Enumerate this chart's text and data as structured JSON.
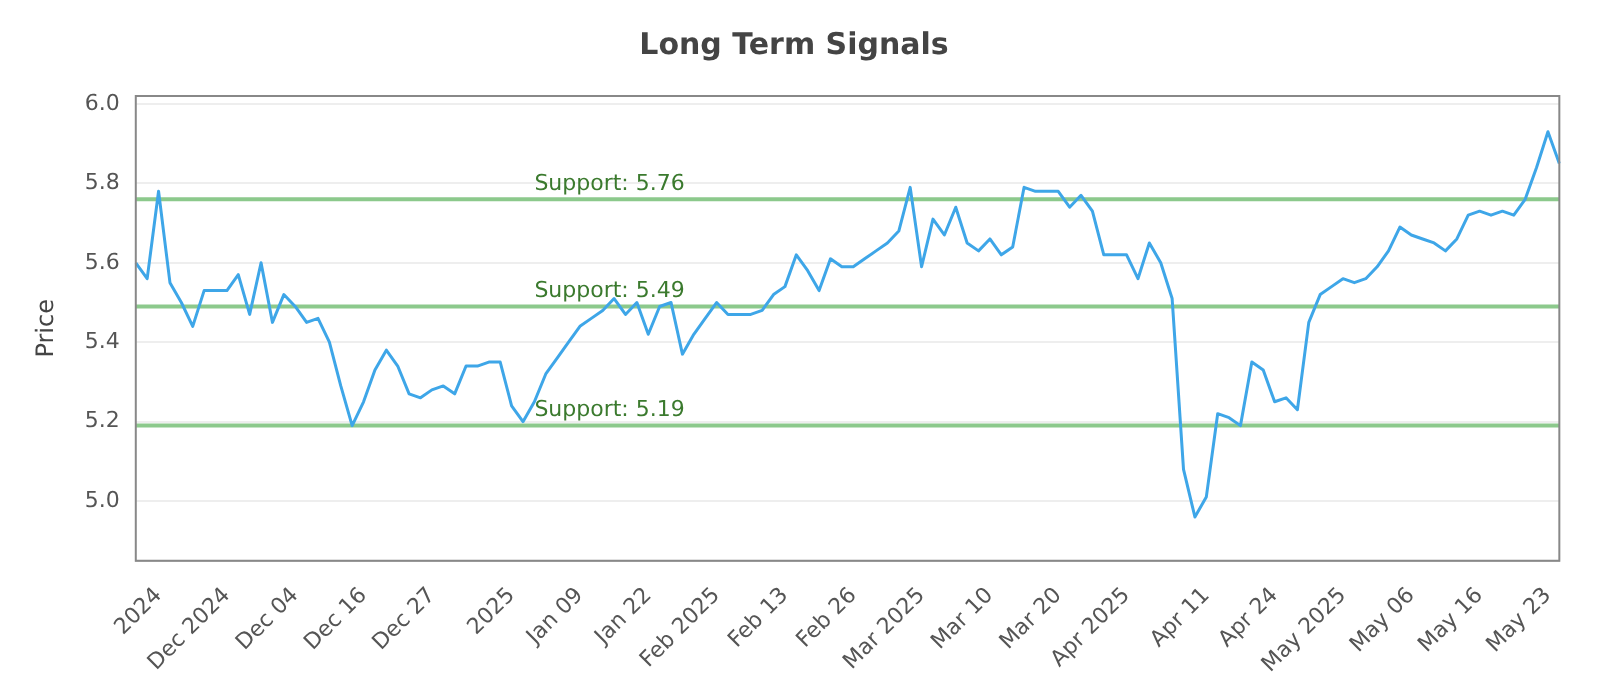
{
  "chart_data": {
    "type": "line",
    "title": "Long Term Signals",
    "ylabel": "Price",
    "categories": [
      null,
      null,
      "2024",
      null,
      null,
      null,
      null,
      null,
      "Dec 2024",
      null,
      null,
      null,
      null,
      null,
      "Dec 04",
      null,
      null,
      null,
      null,
      null,
      "Dec 16",
      null,
      null,
      null,
      null,
      null,
      "Dec 27",
      null,
      null,
      null,
      null,
      null,
      null,
      "2025",
      null,
      null,
      null,
      null,
      null,
      "Jan 09",
      null,
      null,
      null,
      null,
      null,
      "Jan 22",
      null,
      null,
      null,
      null,
      null,
      "Feb 2025",
      null,
      null,
      null,
      null,
      null,
      "Feb 13",
      null,
      null,
      null,
      null,
      null,
      "Feb 26",
      null,
      null,
      null,
      null,
      null,
      "Mar 2025",
      null,
      null,
      null,
      null,
      null,
      "Mar 10",
      null,
      null,
      null,
      null,
      null,
      "Mar 20",
      null,
      null,
      null,
      null,
      null,
      "Apr 2025",
      null,
      null,
      null,
      null,
      null,
      null,
      "Apr 11",
      null,
      null,
      null,
      null,
      null,
      "Apr 24",
      null,
      null,
      null,
      null,
      null,
      "May 2025",
      null,
      null,
      null,
      null,
      null,
      "May 06",
      null,
      null,
      null,
      null,
      null,
      "May 16",
      null,
      null,
      null,
      null,
      null,
      "May 23",
      null
    ],
    "series": [
      {
        "color": "#3ea6e8",
        "values": [
          5.6,
          5.56,
          5.78,
          5.55,
          5.5,
          5.44,
          5.53,
          5.53,
          5.53,
          5.57,
          5.47,
          5.6,
          5.45,
          5.52,
          5.49,
          5.45,
          5.46,
          5.4,
          5.29,
          5.19,
          5.25,
          5.33,
          5.38,
          5.34,
          5.27,
          5.26,
          5.28,
          5.29,
          5.27,
          5.34,
          5.34,
          5.35,
          5.35,
          5.24,
          5.2,
          5.25,
          5.32,
          5.36,
          5.4,
          5.44,
          5.46,
          5.48,
          5.51,
          5.47,
          5.5,
          5.42,
          5.49,
          5.5,
          5.37,
          5.42,
          5.46,
          5.5,
          5.47,
          5.47,
          5.47,
          5.48,
          5.52,
          5.54,
          5.62,
          5.58,
          5.53,
          5.61,
          5.59,
          5.59,
          5.61,
          5.63,
          5.65,
          5.68,
          5.79,
          5.59,
          5.71,
          5.67,
          5.74,
          5.65,
          5.63,
          5.66,
          5.62,
          5.64,
          5.79,
          5.78,
          5.78,
          5.78,
          5.74,
          5.77,
          5.73,
          5.62,
          5.62,
          5.62,
          5.56,
          5.65,
          5.6,
          5.51,
          5.08,
          4.96,
          5.01,
          5.22,
          5.21,
          5.19,
          5.35,
          5.33,
          5.25,
          5.26,
          5.23,
          5.45,
          5.52,
          5.54,
          5.56,
          5.55,
          5.56,
          5.59,
          5.63,
          5.69,
          5.67,
          5.66,
          5.65,
          5.63,
          5.66,
          5.72,
          5.73,
          5.72,
          5.73,
          5.72,
          5.76,
          5.84,
          5.93,
          5.85
        ]
      }
    ],
    "ylim": [
      4.85,
      6.02
    ],
    "yticks": [
      {
        "value": 5,
        "label": "5.0"
      },
      5.2,
      5.4,
      5.6,
      5.8,
      {
        "value": 6,
        "label": "6.0"
      }
    ],
    "grid": "y",
    "legend": false,
    "marker": "none",
    "line_style": "solid",
    "ref_lines": [
      {
        "axis": "y",
        "value": 5.76,
        "label": "Support: 5.76",
        "color": "#8cc98c"
      },
      {
        "axis": "y",
        "value": 5.49,
        "label": "Support: 5.49",
        "color": "#8cc98c"
      },
      {
        "axis": "y",
        "value": 5.19,
        "label": "Support: 5.19",
        "color": "#8cc98c"
      }
    ]
  }
}
